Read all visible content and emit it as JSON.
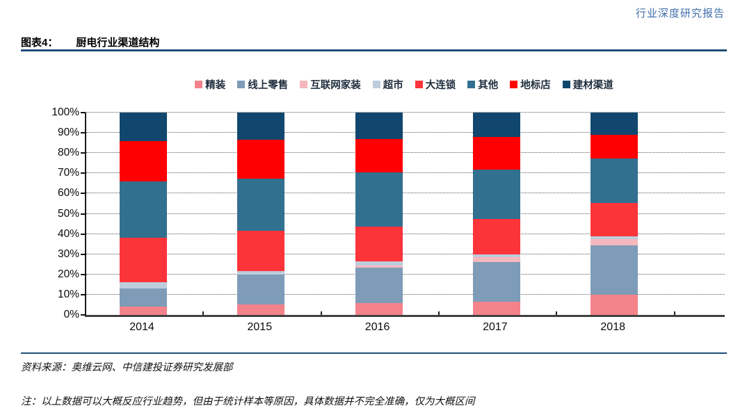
{
  "header": {
    "report_label": "行业深度研究报告"
  },
  "figure": {
    "label": "图表4：",
    "title": "厨电行业渠道结构"
  },
  "chart_data": {
    "type": "bar",
    "variant": "stacked-100",
    "title": "厨电行业渠道结构",
    "categories": [
      "2014",
      "2015",
      "2016",
      "2017",
      "2018"
    ],
    "unit": "%",
    "ylim": [
      0,
      100
    ],
    "ytick_step": 10,
    "ytick_labels": [
      "0%",
      "10%",
      "20%",
      "30%",
      "40%",
      "50%",
      "60%",
      "70%",
      "80%",
      "90%",
      "100%"
    ],
    "grid": "horizontal-dotted",
    "legend_position": "top",
    "series": [
      {
        "name": "精装",
        "color": "#F4828A",
        "values": [
          4,
          5,
          6,
          6.5,
          10
        ]
      },
      {
        "name": "线上零售",
        "color": "#7E9CB8",
        "values": [
          9,
          15,
          17.5,
          19.5,
          24.5
        ]
      },
      {
        "name": "互联网家装",
        "color": "#F5B8BD",
        "values": [
          0,
          0,
          1,
          2.5,
          3
        ]
      },
      {
        "name": "超市",
        "color": "#BCCDDC",
        "values": [
          3,
          1.5,
          2,
          1.5,
          1.5
        ]
      },
      {
        "name": "大连锁",
        "color": "#FB343A",
        "values": [
          22,
          20,
          17,
          17.5,
          16.5
        ]
      },
      {
        "name": "其他",
        "color": "#31708F",
        "values": [
          28,
          26,
          27,
          24.5,
          22
        ]
      },
      {
        "name": "地标店",
        "color": "#FE0000",
        "values": [
          20,
          19,
          16.5,
          16,
          11.5
        ]
      },
      {
        "name": "建材渠道",
        "color": "#11476E",
        "values": [
          14,
          13.5,
          13,
          12,
          11
        ]
      }
    ]
  },
  "footer": {
    "source": "资料来源：奥维云网、中信建投证券研究发展部",
    "note": "注：以上数据可以大概反应行业趋势，但由于统计样本等原因，具体数据并不完全准确，仅为大概区间"
  }
}
